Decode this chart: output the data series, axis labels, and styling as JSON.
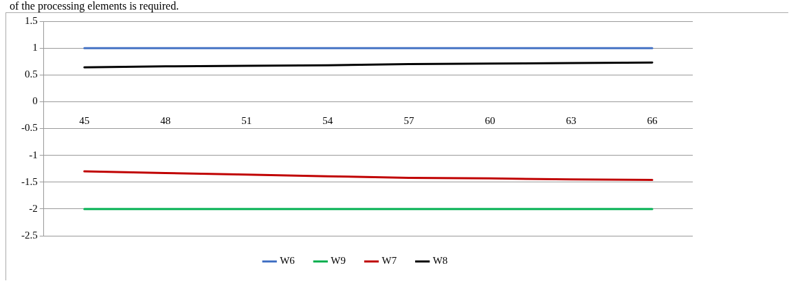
{
  "chart_data": {
    "type": "line",
    "annotations": [
      "of the processing elements is required."
    ],
    "categories": [
      "45",
      "48",
      "51",
      "54",
      "57",
      "60",
      "63",
      "66"
    ],
    "series": [
      {
        "name": "W6",
        "color": "#4472c4",
        "values": [
          1,
          1,
          1,
          1,
          1,
          1,
          1,
          1
        ]
      },
      {
        "name": "W9",
        "color": "#00b050",
        "values": [
          -2,
          -2,
          -2,
          -2,
          -2,
          -2,
          -2,
          -2
        ]
      },
      {
        "name": "W7",
        "color": "#c00000",
        "values": [
          -1.3,
          -1.33,
          -1.36,
          -1.39,
          -1.42,
          -1.43,
          -1.45,
          -1.46
        ]
      },
      {
        "name": "W8",
        "color": "#000000",
        "values": [
          0.64,
          0.66,
          0.67,
          0.68,
          0.7,
          0.71,
          0.72,
          0.73
        ]
      }
    ],
    "ylim": [
      -2.5,
      1.5
    ],
    "yticks": [
      -2.5,
      -2,
      -1.5,
      -1,
      -0.5,
      0,
      0.5,
      1,
      1.5
    ],
    "grid": "y",
    "legend": "bottom",
    "marker": "none",
    "line_style": "solid"
  }
}
